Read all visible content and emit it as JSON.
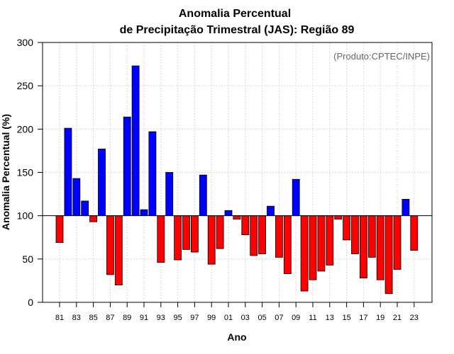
{
  "chart_data": {
    "type": "bar",
    "title_line1": "Anomalia Percentual",
    "title_line2": "de Precipitação Trimestral (JAS): Região 89",
    "xlabel": "Ano",
    "ylabel": "Anomalia Percentual (%)",
    "credit": "(Produto:CPTEC/INPE)",
    "baseline": 100,
    "ylim": [
      0,
      300
    ],
    "yticks": [
      "0",
      "50",
      "100",
      "150",
      "200",
      "250",
      "300"
    ],
    "ytick_values": [
      0,
      50,
      100,
      150,
      200,
      250,
      300
    ],
    "grid": true,
    "colors": {
      "above": "#0000ff",
      "below": "#ff0000",
      "grid": "#d9d9d9"
    },
    "categories": [
      "1981",
      "1982",
      "1983",
      "1984",
      "1985",
      "1986",
      "1987",
      "1988",
      "1989",
      "1990",
      "1991",
      "1992",
      "1993",
      "1994",
      "1995",
      "1996",
      "1997",
      "1998",
      "1999",
      "2000",
      "2001",
      "2002",
      "2003",
      "2004",
      "2005",
      "2006",
      "2007",
      "2008",
      "2009",
      "2010",
      "2011",
      "2012",
      "2013",
      "2014",
      "2015",
      "2016",
      "2017",
      "2018",
      "2019",
      "2020",
      "2021",
      "2022",
      "2023"
    ],
    "xtick_labels": [
      "81",
      "83",
      "85",
      "87",
      "89",
      "91",
      "93",
      "95",
      "97",
      "99",
      "01",
      "03",
      "05",
      "07",
      "09",
      "11",
      "13",
      "15",
      "17",
      "19",
      "21",
      "23"
    ],
    "values": [
      69,
      201,
      143,
      117,
      93,
      177,
      32,
      20,
      214,
      273,
      107,
      197,
      46,
      150,
      49,
      61,
      58,
      147,
      44,
      62,
      106,
      96,
      78,
      54,
      56,
      111,
      52,
      33,
      142,
      13,
      26,
      36,
      43,
      96,
      72,
      56,
      28,
      52,
      26,
      10,
      38,
      119,
      60
    ]
  }
}
